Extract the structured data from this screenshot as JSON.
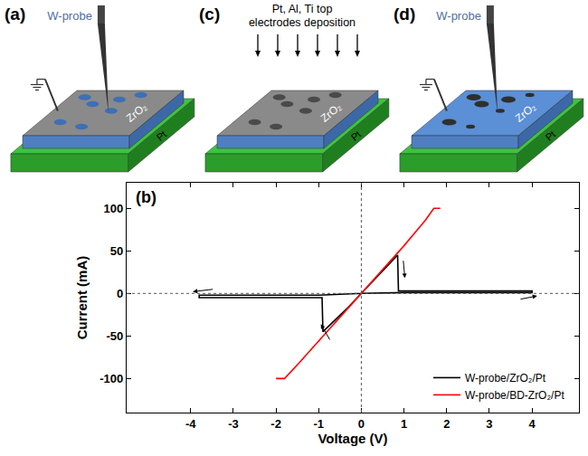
{
  "panels": [
    {
      "label": "(a)",
      "probe_label": "W-probe",
      "layers": [
        "ZrO₂",
        "Pt"
      ]
    },
    {
      "label": "(c)",
      "caption": [
        "Pt, Al, Ti top",
        "electrodes deposition"
      ],
      "layers": [
        "ZrO₂",
        "Pt"
      ]
    },
    {
      "label": "(d)",
      "probe_label": "W-probe",
      "layers": [
        "ZrO₂",
        "Pt"
      ]
    }
  ],
  "chart_data": {
    "type": "line",
    "title": "(b)",
    "x_label": "Voltage (V)",
    "y_label": "Current (mA)",
    "series": [
      {
        "name": "W-probe/ZrO₂/Pt",
        "color": "#000000",
        "x": [
          0,
          0.3,
          0.6,
          0.85,
          0.87,
          1.5,
          2.5,
          3.5,
          4,
          4,
          3,
          2,
          1,
          0,
          -1,
          -2,
          -3,
          -3.8,
          -3.8,
          -3,
          -2,
          -1,
          -0.92,
          -0.9,
          -0.6,
          -0.3,
          0
        ],
        "values": [
          0,
          16,
          32,
          45,
          3,
          3,
          3,
          3,
          3,
          1,
          1,
          1,
          1,
          0,
          -2,
          -2,
          -2,
          -2,
          -5,
          -5,
          -5,
          -5,
          -5,
          -45,
          -31,
          -16,
          0
        ]
      },
      {
        "name": "W-probe/BD-ZrO₂/Pt",
        "color": "#ff0000",
        "x": [
          -2,
          -1.8,
          -1.5,
          -1,
          -0.5,
          0,
          0.5,
          1,
          1.5,
          1.7,
          1.85
        ],
        "values": [
          -100,
          -100,
          -84,
          -56,
          -28,
          0,
          28,
          56,
          86,
          100,
          100
        ]
      }
    ],
    "xlim": [
      -5.5,
      5.1
    ],
    "xticks": [
      -4,
      -3,
      -2,
      -1,
      0,
      1,
      2,
      3,
      4
    ],
    "ylim": [
      -140,
      130
    ],
    "yticks": [
      -100,
      -50,
      0,
      50,
      100
    ],
    "legend": "lower right",
    "grid": false
  }
}
